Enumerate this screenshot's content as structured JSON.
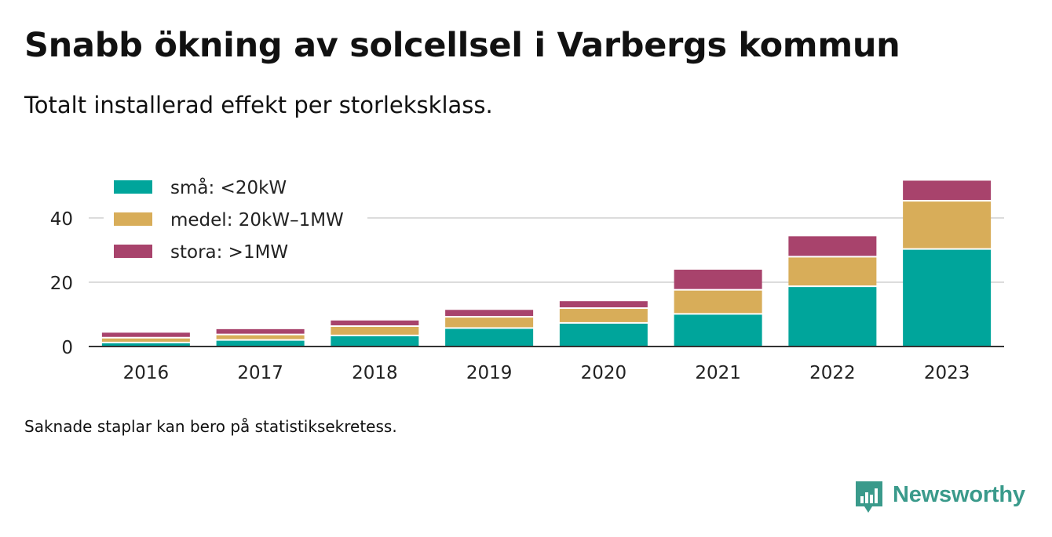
{
  "header": {
    "title": "Snabb ökning av solcellsel i Varbergs kommun",
    "subtitle": "Totalt installerad effekt per storleksklass."
  },
  "footnote": "Saknade staplar kan bero på statistiksekretess.",
  "brand": {
    "name": "Newsworthy",
    "icon": "newsworthy-logo-icon",
    "color": "#3a9a8b"
  },
  "chart_data": {
    "type": "bar",
    "stacked": true,
    "categories": [
      "2016",
      "2017",
      "2018",
      "2019",
      "2020",
      "2021",
      "2022",
      "2023"
    ],
    "series": [
      {
        "name": "små: <20kW",
        "color": "#00a59b",
        "values": [
          1.0,
          1.8,
          3.2,
          5.5,
          7.1,
          9.9,
          18.5,
          30.1
        ]
      },
      {
        "name": "medel: 20kW–1MW",
        "color": "#d8ad59",
        "values": [
          1.5,
          1.7,
          2.9,
          3.5,
          4.6,
          7.5,
          9.2,
          15.0
        ]
      },
      {
        "name": "stora: >1MW",
        "color": "#a8436c",
        "values": [
          1.8,
          1.9,
          2.0,
          2.4,
          2.4,
          6.5,
          6.6,
          6.5
        ]
      }
    ],
    "yticks": [
      0,
      20,
      40
    ],
    "ylim": [
      0,
      54
    ],
    "grid": true,
    "legend": "top-left",
    "title": "",
    "xlabel": "",
    "ylabel": ""
  }
}
